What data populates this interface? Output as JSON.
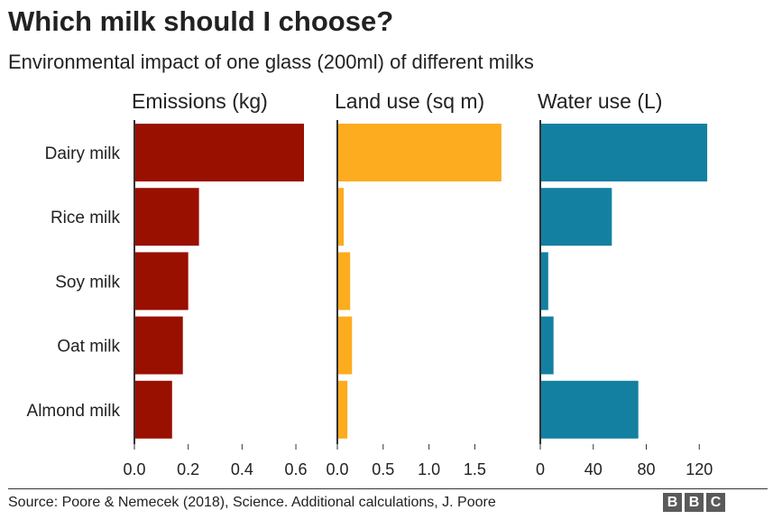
{
  "title": "Which milk should I choose?",
  "subtitle": "Environmental impact of one glass (200ml) of different milks",
  "source": "Source: Poore & Nemecek (2018), Science. Additional calculations, J. Poore",
  "logo": {
    "letters": [
      "B",
      "B",
      "C"
    ],
    "color": "#5a5a5a"
  },
  "chart_data": {
    "type": "bar",
    "orientation": "horizontal",
    "categories": [
      "Dairy milk",
      "Rice milk",
      "Soy milk",
      "Oat milk",
      "Almond milk"
    ],
    "panels": [
      {
        "name": "Emissions (kg)",
        "color": "#990f00",
        "values": [
          0.63,
          0.24,
          0.2,
          0.18,
          0.14
        ],
        "xlim": [
          0,
          0.63
        ],
        "ticks": [
          0,
          0.2,
          0.4,
          0.6
        ],
        "tick_labels": [
          "0.0",
          "0.2",
          "0.4",
          "0.6"
        ]
      },
      {
        "name": "Land use (sq m)",
        "color": "#fcac1e",
        "values": [
          1.79,
          0.07,
          0.14,
          0.16,
          0.11
        ],
        "xlim": [
          0,
          1.85
        ],
        "ticks": [
          0,
          0.5,
          1.0,
          1.5
        ],
        "tick_labels": [
          "0.0",
          "0.5",
          "1.0",
          "1.5"
        ]
      },
      {
        "name": "Water use (L)",
        "color": "#1380a1",
        "values": [
          126,
          54,
          6,
          10,
          74
        ],
        "xlim": [
          0,
          128
        ],
        "ticks": [
          0,
          40,
          80,
          120
        ],
        "tick_labels": [
          "0",
          "40",
          "80",
          "120"
        ]
      }
    ],
    "grid": false,
    "legend": "none"
  }
}
